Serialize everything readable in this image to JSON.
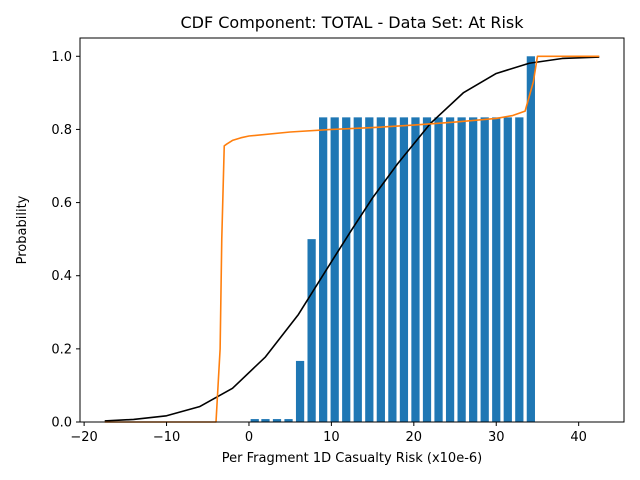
{
  "chart_data": {
    "type": "bar",
    "title": "CDF Component: TOTAL - Data Set: At Risk",
    "xlabel": "Per Fragment 1D Casualty Risk (x10e-6)",
    "ylabel": "Probability",
    "xlim": [
      -20.5,
      45.5
    ],
    "ylim": [
      0,
      1.05
    ],
    "xticks": [
      -20,
      -10,
      0,
      10,
      20,
      30,
      40
    ],
    "yticks": [
      0.0,
      0.2,
      0.4,
      0.6,
      0.8,
      1.0
    ],
    "grid": false,
    "colors": {
      "bars": "#1f77b4",
      "normal_cdf": "#000000",
      "fit_cdf": "#ff7f0e"
    },
    "bars": {
      "width": 1.0,
      "x": [
        0.7,
        2.0,
        3.4,
        4.8,
        6.2,
        7.6,
        9.0,
        10.4,
        11.8,
        13.2,
        14.6,
        16.0,
        17.4,
        18.8,
        20.2,
        21.6,
        23.0,
        24.4,
        25.8,
        27.2,
        28.6,
        30.0,
        31.4,
        32.8,
        34.2
      ],
      "values": [
        0.008,
        0.008,
        0.008,
        0.008,
        0.167,
        0.5,
        0.833,
        0.833,
        0.833,
        0.833,
        0.833,
        0.833,
        0.833,
        0.833,
        0.833,
        0.833,
        0.833,
        0.833,
        0.833,
        0.833,
        0.833,
        0.833,
        0.833,
        0.833,
        1.0
      ]
    },
    "series": [
      {
        "type": "line",
        "x": [
          -17.5,
          -14,
          -10,
          -6,
          -2,
          2,
          6,
          10,
          12.5,
          15,
          18,
          22,
          26,
          30,
          34,
          38,
          42.5
        ],
        "values": [
          0.003,
          0.007,
          0.017,
          0.042,
          0.092,
          0.178,
          0.294,
          0.438,
          0.527,
          0.613,
          0.705,
          0.816,
          0.9,
          0.953,
          0.981,
          0.994,
          0.998
        ]
      },
      {
        "type": "line",
        "x": [
          -17.5,
          -10,
          -4,
          -3.5,
          -3.3,
          -3.0,
          -2.7,
          -2.0,
          -1.0,
          0,
          5,
          10,
          15,
          20,
          25,
          30,
          32,
          33.5,
          34.5,
          35.0,
          35.2,
          40,
          42.5
        ],
        "values": [
          0.0,
          0.0,
          0.0,
          0.2,
          0.5,
          0.755,
          0.76,
          0.77,
          0.777,
          0.782,
          0.793,
          0.8,
          0.805,
          0.812,
          0.82,
          0.83,
          0.838,
          0.85,
          0.93,
          1.0,
          1.0,
          1.0,
          1.0
        ]
      }
    ]
  }
}
